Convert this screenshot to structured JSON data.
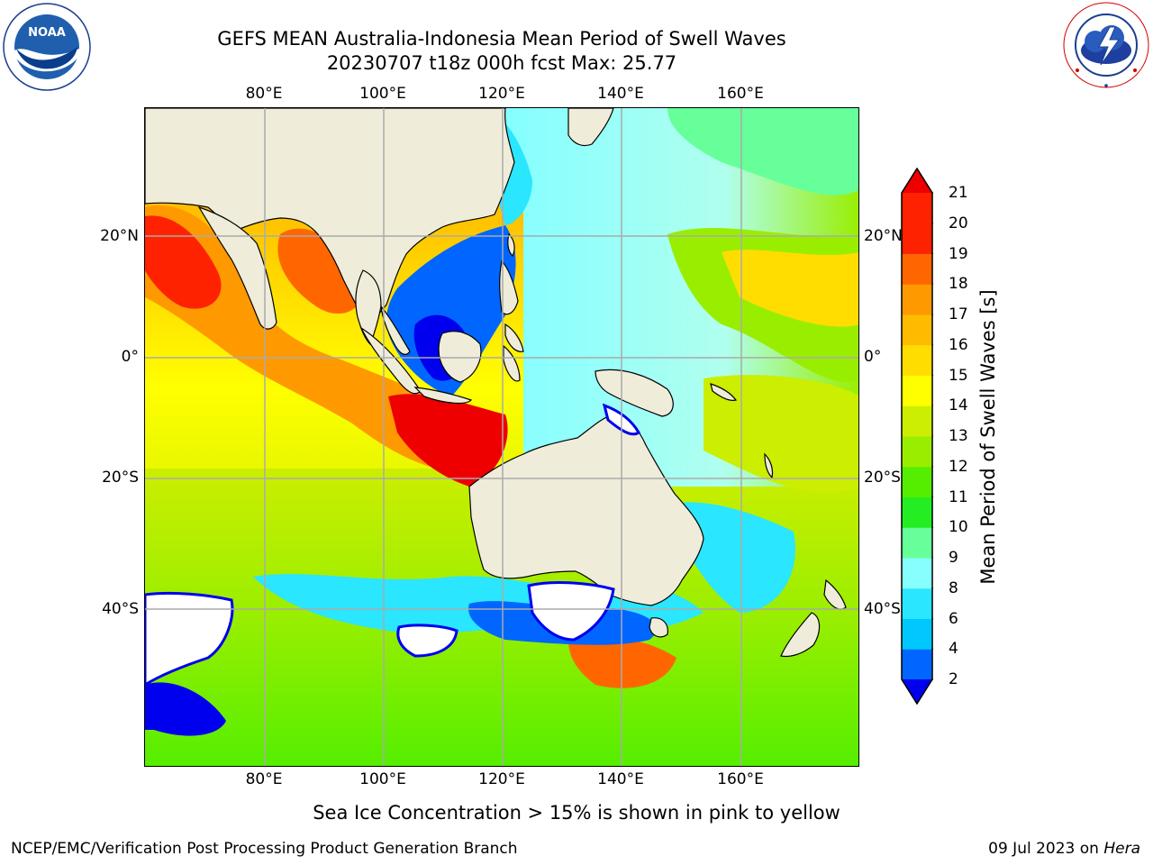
{
  "title_line1": "GEFS MEAN Australia-Indonesia Mean Period of Swell Waves",
  "title_line2": "20230707 t18z 000h fcst   Max: 25.77",
  "longitude_ticks": [
    "80°E",
    "100°E",
    "120°E",
    "140°E",
    "160°E"
  ],
  "latitude_ticks": [
    "20°N",
    "0°",
    "20°S",
    "40°S"
  ],
  "colorbar": {
    "label": "Mean Period of Swell Waves [s]",
    "levels": [
      "2",
      "4",
      "6",
      "8",
      "9",
      "10",
      "11",
      "12",
      "13",
      "14",
      "15",
      "16",
      "17",
      "18",
      "19",
      "20",
      "21"
    ],
    "colors": [
      "#0000ee",
      "#0066ff",
      "#00c8ff",
      "#2ae6ff",
      "#88ffff",
      "#66ff99",
      "#22ee22",
      "#55ee00",
      "#99ee00",
      "#ccee00",
      "#ffff00",
      "#ffdd00",
      "#ffbb00",
      "#ff9900",
      "#ff6600",
      "#ff2200",
      "#ee0000"
    ]
  },
  "colors": {
    "land": "#efedd9",
    "sea_ice_white": "#ffffff",
    "grid": "#aaaaaa"
  },
  "footer_note": "Sea Ice Concentration > 15% is shown in pink to yellow",
  "credit_left": "NCEP/EMC/Verification Post Processing Product Generation Branch",
  "credit_right_date": "09 Jul 2023 on ",
  "credit_right_host": "Hera",
  "logos": {
    "left": "noaa-logo",
    "right": "national-weather-service-logo"
  }
}
